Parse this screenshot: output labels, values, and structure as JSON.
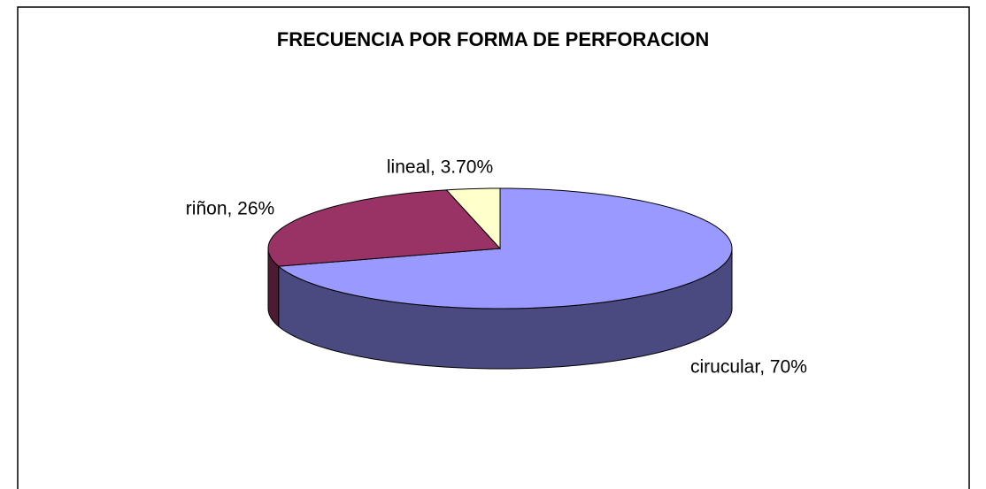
{
  "chart_data": {
    "type": "pie",
    "title": "FRECUENCIA POR FORMA DE PERFORACION",
    "categories": [
      "cirucular",
      "riñon",
      "lineal"
    ],
    "values": [
      70,
      26,
      3.7
    ],
    "value_labels": [
      "cirucular, 70%",
      "riñon, 26%",
      "lineal, 3.70%"
    ],
    "colors": [
      "#9999ff",
      "#993366",
      "#ffffcc"
    ],
    "side_colors": [
      "#4a4a80",
      "#4d1a33",
      "#999966"
    ]
  }
}
